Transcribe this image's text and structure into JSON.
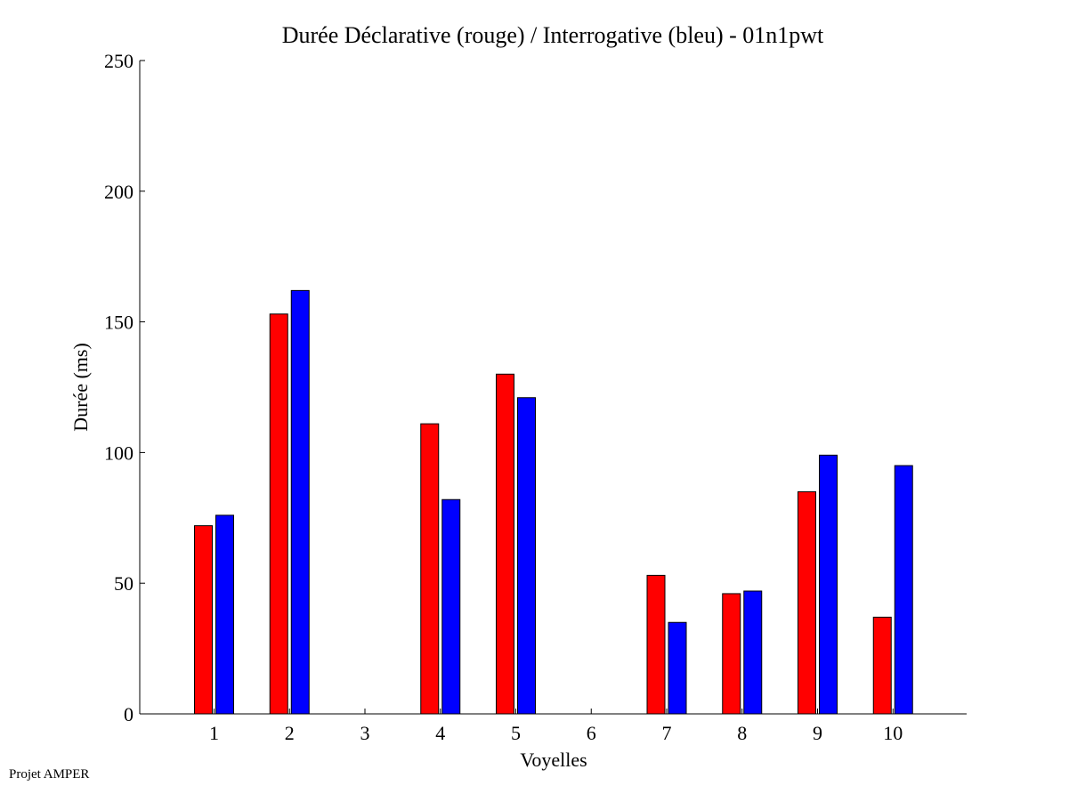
{
  "chart_data": {
    "type": "bar",
    "title": "Durée Déclarative (rouge) / Interrogative (bleu) - 01n1pwt",
    "xlabel": "Voyelles",
    "ylabel": "Durée (ms)",
    "categories": [
      "1",
      "2",
      "3",
      "4",
      "5",
      "6",
      "7",
      "8",
      "9",
      "10"
    ],
    "ylim": [
      0,
      250
    ],
    "yticks": [
      0,
      50,
      100,
      150,
      200,
      250
    ],
    "series": [
      {
        "name": "Déclarative (rouge)",
        "color": "#ff0000",
        "values": [
          72,
          153,
          0,
          111,
          130,
          0,
          53,
          46,
          85,
          37
        ]
      },
      {
        "name": "Interrogative (bleu)",
        "color": "#0000ff",
        "values": [
          76,
          162,
          0,
          82,
          121,
          0,
          35,
          47,
          99,
          95
        ]
      }
    ]
  },
  "footer": "Projet AMPER"
}
